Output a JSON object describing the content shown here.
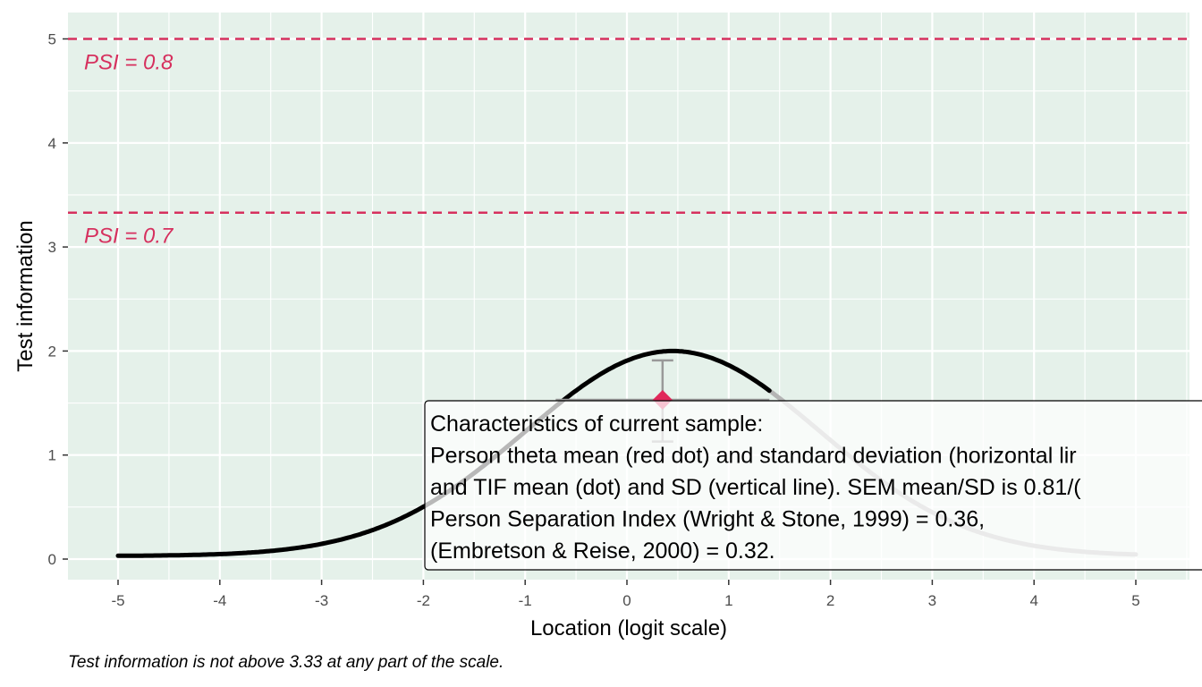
{
  "colors": {
    "panel_bg": "#e5f1ea",
    "grid": "#ffffff",
    "psi": "#d6305e",
    "curve_dark": "#000000",
    "curve_light": "#b5b5b5",
    "errorbar": "#999999",
    "mean_point": "#e1285a"
  },
  "chart_data": {
    "type": "line",
    "xlabel": "Location (logit scale)",
    "ylabel": "Test information",
    "xlim": [
      -5.5,
      5.5
    ],
    "ylim": [
      -0.2,
      5.25
    ],
    "x_ticks": [
      -5,
      -4,
      -3,
      -2,
      -1,
      0,
      1,
      2,
      3,
      4,
      5
    ],
    "y_ticks": [
      0,
      1,
      2,
      3,
      4,
      5
    ],
    "grid": true,
    "series": [
      {
        "x": [
          -5,
          -4.5,
          -4,
          -3.5,
          -3,
          -2.5,
          -2,
          -1.5,
          -1,
          -0.5,
          0,
          0.45,
          1,
          1.5,
          2,
          2.5,
          3,
          3.5,
          4,
          4.5,
          5
        ],
        "y": [
          0.05,
          0.08,
          0.13,
          0.21,
          0.33,
          0.5,
          0.73,
          1.03,
          1.37,
          1.7,
          1.93,
          2.0,
          1.88,
          1.59,
          1.22,
          0.86,
          0.57,
          0.36,
          0.22,
          0.13,
          0.07
        ]
      }
    ],
    "reference_lines": [
      {
        "y": 5.0,
        "label": "PSI = 0.8"
      },
      {
        "y": 3.33,
        "label": "PSI = 0.7"
      }
    ],
    "sample_mean": {
      "x": 0.35,
      "y": 1.53
    },
    "sample_x_sd_range": [
      -0.7,
      1.4
    ],
    "sample_y_sd_range": [
      1.13,
      1.91
    ],
    "annotation_lines": [
      "Characteristics of current sample:",
      "Person theta mean (red dot) and standard deviation (horizontal lir",
      "and TIF mean (dot) and SD (vertical line). SEM mean/SD is 0.81/(",
      "Person Separation Index (Wright & Stone, 1999) = 0.36,",
      "(Embretson & Reise, 2000) = 0.32."
    ],
    "caption": "Test information is not above 3.33 at any part of the scale."
  }
}
